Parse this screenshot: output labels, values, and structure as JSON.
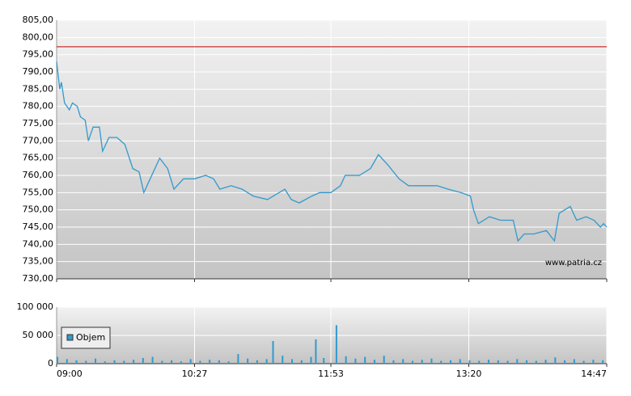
{
  "chart_data": [
    {
      "type": "line",
      "color": "#3399cc",
      "x": [
        "09:00",
        "09:02",
        "09:03",
        "09:05",
        "09:08",
        "09:10",
        "09:13",
        "09:15",
        "09:18",
        "09:20",
        "09:23",
        "09:27",
        "09:29",
        "09:33",
        "09:38",
        "09:43",
        "09:48",
        "09:52",
        "09:55",
        "09:59",
        "10:05",
        "10:10",
        "10:14",
        "10:20",
        "10:27",
        "10:34",
        "10:39",
        "10:43",
        "10:50",
        "10:57",
        "11:04",
        "11:13",
        "11:24",
        "11:28",
        "11:33",
        "11:41",
        "11:46",
        "11:53",
        "11:59",
        "12:02",
        "12:11",
        "12:18",
        "12:23",
        "12:29",
        "12:36",
        "12:42",
        "12:50",
        "13:00",
        "13:07",
        "13:15",
        "13:21",
        "13:23",
        "13:26",
        "13:33",
        "13:40",
        "13:48",
        "13:51",
        "13:55",
        "14:01",
        "14:09",
        "14:14",
        "14:17",
        "14:24",
        "14:28",
        "14:34",
        "14:39",
        "14:43",
        "14:45",
        "14:47"
      ],
      "values": [
        793,
        785,
        787,
        781,
        779,
        781,
        780,
        777,
        776,
        770,
        774,
        774,
        767,
        771,
        771,
        769,
        762,
        761,
        755,
        759,
        765,
        762,
        756,
        759,
        759,
        760,
        759,
        756,
        757,
        756,
        754,
        753,
        756,
        753,
        752,
        754,
        755,
        755,
        757,
        760,
        760,
        762,
        766,
        763,
        759,
        757,
        757,
        757,
        756,
        755,
        754,
        750,
        746,
        748,
        747,
        747,
        741,
        743,
        743,
        744,
        741,
        749,
        751,
        747,
        748,
        747,
        745,
        746,
        745
      ],
      "xlim": [
        "09:00",
        "14:47"
      ],
      "xticks": [
        "09:00",
        "10:27",
        "11:53",
        "13:20",
        "14:47"
      ],
      "ylim": [
        730,
        805
      ],
      "yticks": [
        {
          "value": 730,
          "label": "730,00"
        },
        {
          "value": 735,
          "label": "735,00"
        },
        {
          "value": 740,
          "label": "740,00"
        },
        {
          "value": 745,
          "label": "745,00"
        },
        {
          "value": 750,
          "label": "750,00"
        },
        {
          "value": 755,
          "label": "755,00"
        },
        {
          "value": 760,
          "label": "760,00"
        },
        {
          "value": 765,
          "label": "765,00"
        },
        {
          "value": 770,
          "label": "770,00"
        },
        {
          "value": 775,
          "label": "775,00"
        },
        {
          "value": 780,
          "label": "780,00"
        },
        {
          "value": 785,
          "label": "785,00"
        },
        {
          "value": 790,
          "label": "790,00"
        },
        {
          "value": 795,
          "label": "795,00"
        },
        {
          "value": 800,
          "label": "800,00"
        },
        {
          "value": 805,
          "label": "805,00"
        }
      ],
      "reference_line": {
        "value": 797.3,
        "color": "#c00000"
      },
      "grid": true,
      "source": "www.patria.cz"
    },
    {
      "type": "bar",
      "x": [
        "09:00",
        "09:06",
        "09:12",
        "09:18",
        "09:24",
        "09:30",
        "09:36",
        "09:42",
        "09:48",
        "09:54",
        "10:00",
        "10:06",
        "10:12",
        "10:18",
        "10:24",
        "10:30",
        "10:36",
        "10:42",
        "10:48",
        "10:54",
        "11:00",
        "11:06",
        "11:12",
        "11:16",
        "11:22",
        "11:28",
        "11:34",
        "11:40",
        "11:43",
        "11:48",
        "11:56",
        "12:02",
        "12:08",
        "12:14",
        "12:20",
        "12:26",
        "12:32",
        "12:38",
        "12:44",
        "12:50",
        "12:56",
        "13:02",
        "13:08",
        "13:14",
        "13:20",
        "13:26",
        "13:32",
        "13:38",
        "13:44",
        "13:50",
        "13:56",
        "14:02",
        "14:08",
        "14:14",
        "14:20",
        "14:26",
        "14:32",
        "14:38",
        "14:44"
      ],
      "series": [
        {
          "name": "Objem",
          "color": "#3399cc",
          "values": [
            12000,
            8000,
            6000,
            5000,
            9000,
            4000,
            6000,
            5000,
            7000,
            10000,
            12000,
            5000,
            6000,
            4000,
            8000,
            5000,
            7000,
            6000,
            4000,
            17000,
            9000,
            6000,
            8000,
            40000,
            14000,
            8000,
            6000,
            12000,
            43000,
            10000,
            68000,
            13000,
            9000,
            12000,
            7000,
            14000,
            6000,
            8000,
            5000,
            7000,
            9000,
            5000,
            6000,
            8000,
            6000,
            5000,
            7000,
            6000,
            5000,
            8000,
            6000,
            5000,
            7000,
            11000,
            6000,
            8000,
            5000,
            7000,
            6000
          ]
        }
      ],
      "xlim": [
        "09:00",
        "14:47"
      ],
      "xticks": [
        "09:00",
        "10:27",
        "11:53",
        "13:20",
        "14:47"
      ],
      "ylim": [
        0,
        100000
      ],
      "yticks": [
        0,
        {
          "value": 50000,
          "label": "50 000"
        },
        {
          "value": 100000,
          "label": "100 000"
        }
      ],
      "grid": true,
      "legend": "upper left"
    }
  ]
}
